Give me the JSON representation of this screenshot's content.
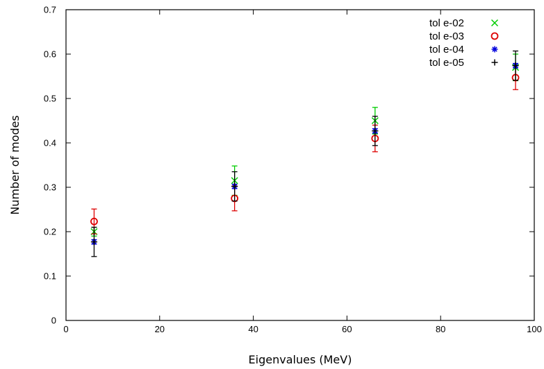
{
  "chart_data": {
    "type": "scatter",
    "title": "",
    "xlabel": "Eigenvalues (MeV)",
    "ylabel": "Number of modes",
    "xlim": [
      0,
      100
    ],
    "ylim": [
      0,
      0.7
    ],
    "x_ticks": [
      0,
      20,
      40,
      60,
      80,
      100
    ],
    "y_ticks": [
      0,
      0.1,
      0.2,
      0.3,
      0.4,
      0.5,
      0.6,
      0.7
    ],
    "x_tick_labels": [
      "0",
      "20",
      "40",
      "60",
      "80",
      "100"
    ],
    "y_tick_labels": [
      "0",
      "0.1",
      "0.2",
      "0.3",
      "0.4",
      "0.5",
      "0.6",
      "0.7"
    ],
    "grid": false,
    "legend_position": "top-right",
    "series": [
      {
        "name": "tol e-02",
        "marker": "x",
        "color": "#00cc00",
        "points": [
          {
            "x": 6,
            "y": 0.2,
            "err": 0.01
          },
          {
            "x": 36,
            "y": 0.315,
            "err": 0.033
          },
          {
            "x": 66,
            "y": 0.45,
            "err": 0.03
          },
          {
            "x": 96,
            "y": 0.57,
            "err": 0.03
          }
        ]
      },
      {
        "name": "tol e-03",
        "marker": "o",
        "color": "#dd0000",
        "points": [
          {
            "x": 6,
            "y": 0.223,
            "err": 0.028
          },
          {
            "x": 36,
            "y": 0.275,
            "err": 0.028
          },
          {
            "x": 66,
            "y": 0.41,
            "err": 0.03
          },
          {
            "x": 96,
            "y": 0.547,
            "err": 0.027
          }
        ]
      },
      {
        "name": "tol e-04",
        "marker": "*",
        "color": "#0000dd",
        "points": [
          {
            "x": 6,
            "y": 0.177,
            "err": 0.005
          },
          {
            "x": 36,
            "y": 0.302,
            "err": 0.005
          },
          {
            "x": 66,
            "y": 0.427,
            "err": 0.005
          },
          {
            "x": 96,
            "y": 0.574,
            "err": 0.005
          }
        ]
      },
      {
        "name": "tol e-05",
        "marker": "+",
        "color": "#000000",
        "points": [
          {
            "x": 6,
            "y": 0.177,
            "err": 0.033
          },
          {
            "x": 36,
            "y": 0.302,
            "err": 0.033
          },
          {
            "x": 66,
            "y": 0.427,
            "err": 0.033
          },
          {
            "x": 96,
            "y": 0.574,
            "err": 0.033
          }
        ]
      }
    ]
  }
}
